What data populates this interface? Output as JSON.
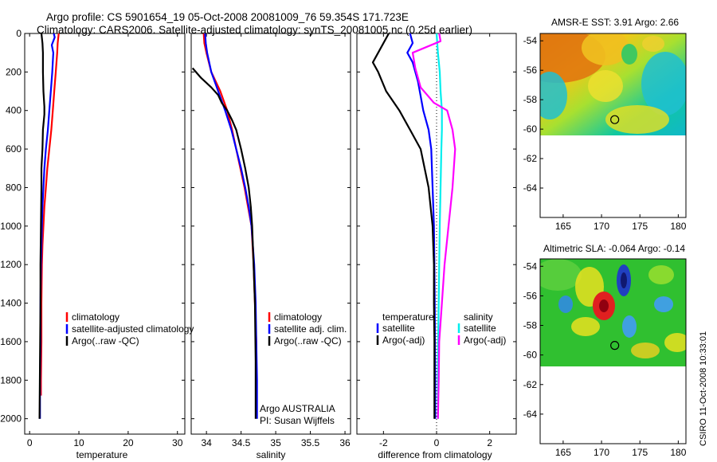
{
  "figure": {
    "title_line1": "Argo profile: CS 5901654_19 05-Oct-2008 20081009_76 59.354S 171.723E",
    "title_line2": "Climatology: CARS2006. Satellite-adjusted climatology: synTS_20081005.nc (0.25d earlier)",
    "timestamp": "CSIRO 11-Oct-2008 10:33:01",
    "argo_agency": "Argo AUSTRALIA",
    "argo_pi": "PI: Susan Wijffels",
    "colors": {
      "red": "#ff0000",
      "blue": "#0000ff",
      "black": "#000000",
      "cyan": "#00eeee",
      "magenta": "#ff00ff"
    }
  },
  "chart_data": [
    {
      "type": "line",
      "panel": "temperature",
      "xlabel": "temperature",
      "ylabel": "",
      "xlim": [
        -1,
        31.5
      ],
      "ylim": [
        2080,
        0
      ],
      "y_inverted": true,
      "xticks": [
        0,
        10,
        20,
        30
      ],
      "yticks": [
        0,
        200,
        400,
        600,
        800,
        1000,
        1200,
        1400,
        1600,
        1800,
        2000
      ],
      "legend": [
        "climatology",
        "satellite-adjusted climatology",
        "Argo(..raw -QC)"
      ],
      "legend_position": "lower-middle",
      "series": [
        {
          "name": "climatology",
          "color": "red",
          "x": [
            5.9,
            5.7,
            5.6,
            5.3,
            5.0,
            4.7,
            4.4,
            4.0,
            3.6,
            3.3,
            3.0,
            2.8,
            2.6,
            2.5,
            2.4,
            2.4,
            2.3,
            2.3
          ],
          "y": [
            0,
            50,
            100,
            200,
            300,
            400,
            500,
            600,
            700,
            800,
            900,
            1000,
            1100,
            1200,
            1400,
            1600,
            1800,
            1880
          ]
        },
        {
          "name": "satellite-adjusted climatology",
          "color": "blue",
          "x": [
            4.9,
            5.1,
            4.5,
            4.8,
            4.6,
            4.3,
            4.0,
            3.7,
            3.3,
            3.0,
            2.8,
            2.6,
            2.5,
            2.4,
            2.3,
            2.2,
            2.2,
            2.1,
            2.1
          ],
          "y": [
            0,
            20,
            60,
            100,
            200,
            300,
            400,
            500,
            600,
            700,
            800,
            900,
            1000,
            1100,
            1200,
            1400,
            1600,
            1800,
            2000
          ]
        },
        {
          "name": "Argo(..raw -QC)",
          "color": "black",
          "x": [
            2.4,
            2.6,
            2.7,
            2.7,
            2.8,
            3.0,
            3.0,
            2.7,
            2.6,
            2.4,
            2.4,
            2.3,
            2.2,
            2.2,
            2.1,
            2.0
          ],
          "y": [
            0,
            50,
            100,
            200,
            300,
            380,
            420,
            500,
            600,
            700,
            800,
            1000,
            1200,
            1400,
            1700,
            2000
          ]
        }
      ]
    },
    {
      "type": "line",
      "panel": "salinity",
      "xlabel": "salinity",
      "ylabel": "",
      "xlim": [
        33.78,
        36.08
      ],
      "ylim": [
        2080,
        0
      ],
      "y_inverted": true,
      "xticks": [
        34,
        34.5,
        35,
        35.5,
        36
      ],
      "xtick_labels": [
        "34",
        "34.5",
        "35",
        "35.5",
        "36"
      ],
      "legend": [
        "climatology",
        "satellite adj. clim.",
        "Argo(..raw -QC)"
      ],
      "legend_position": "lower-right",
      "series": [
        {
          "name": "climatology",
          "color": "red",
          "x": [
            33.96,
            33.97,
            34.0,
            34.07,
            34.2,
            34.3,
            34.37,
            34.43,
            34.49,
            34.55,
            34.6,
            34.65,
            34.68,
            34.7,
            34.72,
            34.72
          ],
          "y": [
            0,
            50,
            100,
            200,
            300,
            400,
            500,
            600,
            700,
            800,
            900,
            1000,
            1200,
            1400,
            1600,
            1880
          ]
        },
        {
          "name": "satellite adj. clim.",
          "color": "blue",
          "x": [
            33.98,
            33.99,
            34.01,
            34.07,
            34.17,
            34.27,
            34.36,
            34.43,
            34.5,
            34.56,
            34.61,
            34.65,
            34.69,
            34.71,
            34.72,
            34.73,
            34.73
          ],
          "y": [
            0,
            50,
            100,
            200,
            300,
            400,
            500,
            600,
            700,
            800,
            900,
            1000,
            1200,
            1400,
            1600,
            1800,
            2000
          ]
        },
        {
          "name": "Argo(..raw -QC)",
          "color": "black",
          "x": [
            33.8,
            33.92,
            34.07,
            34.17,
            34.22,
            34.3,
            34.37,
            34.43,
            34.5,
            34.56,
            34.61,
            34.64,
            34.66,
            34.68,
            34.7,
            34.71,
            34.71
          ],
          "y": [
            180,
            230,
            280,
            320,
            360,
            400,
            450,
            500,
            600,
            700,
            800,
            900,
            1000,
            1200,
            1400,
            1700,
            2000
          ]
        }
      ]
    },
    {
      "type": "line",
      "panel": "difference from climatology",
      "xlabel": "difference from climatology",
      "ylabel": "",
      "xlim": [
        -3,
        3
      ],
      "ylim": [
        2080,
        0
      ],
      "y_inverted": true,
      "xticks": [
        -2,
        0,
        2
      ],
      "zero_line": "dotted",
      "legend_columns": [
        {
          "heading": "temperature",
          "entries": [
            "satellite",
            "Argo(-adj)"
          ]
        },
        {
          "heading": "salinity",
          "entries": [
            "satellite",
            "Argo(-adj)"
          ]
        }
      ],
      "legend_position": "lower-middle",
      "series": [
        {
          "name": "temperature satellite",
          "color": "blue",
          "x": [
            -1.0,
            -0.9,
            -1.1,
            -0.9,
            -0.7,
            -0.5,
            -0.3,
            -0.2,
            -0.15,
            -0.1,
            -0.08,
            -0.07,
            -0.06,
            -0.05,
            -0.05
          ],
          "y": [
            0,
            50,
            100,
            150,
            250,
            400,
            500,
            600,
            800,
            1000,
            1200,
            1400,
            1600,
            1800,
            2000
          ]
        },
        {
          "name": "temperature Argo(-adj)",
          "color": "black",
          "x": [
            -1.8,
            -2.2,
            -2.4,
            -2.2,
            -1.9,
            -1.4,
            -1.0,
            -0.6,
            -0.3,
            -0.15,
            -0.1,
            -0.1,
            -0.08,
            -0.08
          ],
          "y": [
            0,
            100,
            150,
            200,
            300,
            400,
            500,
            600,
            800,
            1000,
            1200,
            1400,
            1600,
            2000
          ]
        },
        {
          "name": "salinity satellite",
          "color": "cyan",
          "x": [
            0.0,
            0.05,
            0.12,
            0.15,
            0.2,
            0.2,
            0.18,
            0.15,
            0.12,
            0.1,
            0.08,
            0.06,
            0.05,
            0.05
          ],
          "y": [
            0,
            100,
            200,
            300,
            400,
            500,
            600,
            800,
            1000,
            1200,
            1400,
            1600,
            1800,
            2000
          ]
        },
        {
          "name": "salinity Argo(-adj)",
          "color": "magenta",
          "x": [
            0.1,
            0.15,
            -0.9,
            -0.8,
            -0.6,
            -0.1,
            0.4,
            0.6,
            0.7,
            0.6,
            0.45,
            0.3,
            0.2,
            0.1,
            0.08,
            0.05
          ],
          "y": [
            0,
            40,
            100,
            180,
            280,
            360,
            400,
            500,
            600,
            800,
            1000,
            1200,
            1400,
            1600,
            1800,
            2000
          ]
        }
      ]
    },
    {
      "type": "heatmap",
      "panel": "map-sst",
      "title": "AMSR-E SST: 3.91 Argo: 2.66",
      "xlim": [
        162,
        181
      ],
      "ylim": [
        -66,
        -53.5
      ],
      "xticks": [
        165,
        170,
        175,
        180
      ],
      "yticks": [
        -54,
        -56,
        -58,
        -60,
        -62,
        -64
      ],
      "data_extent_lat": [
        -60,
        -53.5
      ],
      "marker": {
        "lon": 171.723,
        "lat": -59.354
      }
    },
    {
      "type": "heatmap",
      "panel": "map-sla",
      "title": "Altimetric SLA: -0.064 Argo: -0.14",
      "xlim": [
        162,
        181
      ],
      "ylim": [
        -66,
        -53.5
      ],
      "xticks": [
        165,
        170,
        175,
        180
      ],
      "yticks": [
        -54,
        -56,
        -58,
        -60,
        -62,
        -64
      ],
      "data_extent_lat": [
        -60,
        -53.5
      ],
      "marker": {
        "lon": 171.723,
        "lat": -59.354
      }
    }
  ]
}
